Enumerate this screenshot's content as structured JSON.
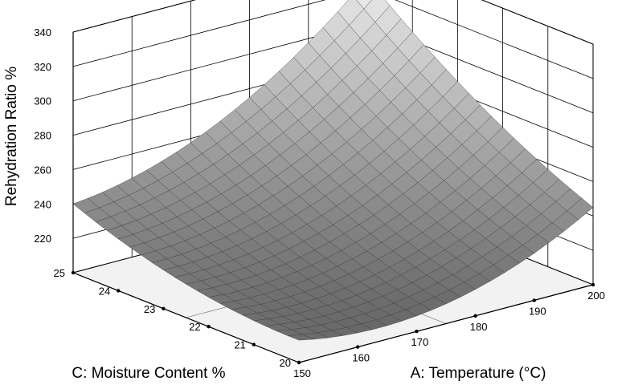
{
  "chart_data": {
    "type": "surface",
    "x_axis": {
      "label": "A: Temperature (°C)",
      "range": [
        150,
        200
      ],
      "ticks": [
        150,
        160,
        170,
        180,
        190,
        200
      ]
    },
    "y_axis": {
      "label": "C: Moisture Content %",
      "range": [
        20,
        25
      ],
      "ticks": [
        20,
        21,
        22,
        23,
        24,
        25
      ]
    },
    "z_axis": {
      "label": "Rehydration Ratio %",
      "range": [
        200,
        340
      ],
      "ticks": [
        220,
        240,
        260,
        280,
        300,
        320,
        340
      ]
    },
    "grid": true,
    "grid_x": [
      150,
      152.5,
      155,
      157.5,
      160,
      162.5,
      165,
      167.5,
      170,
      172.5,
      175,
      177.5,
      180,
      182.5,
      185,
      187.5,
      190,
      192.5,
      195,
      197.5,
      200
    ],
    "grid_y": [
      20,
      20.25,
      20.5,
      20.75,
      21,
      21.25,
      21.5,
      21.75,
      22,
      22.25,
      22.5,
      22.75,
      23,
      23.25,
      23.5,
      23.75,
      24,
      24.25,
      24.5,
      24.75,
      25
    ],
    "corner_values": {
      "x150_y25": 240,
      "x200_y25": 326,
      "x150_y20": 213,
      "x200_y20": 245
    },
    "colors": {
      "low": "#5a5a5a",
      "high": "#eeeeee",
      "edge": "#3a3a3a"
    }
  }
}
